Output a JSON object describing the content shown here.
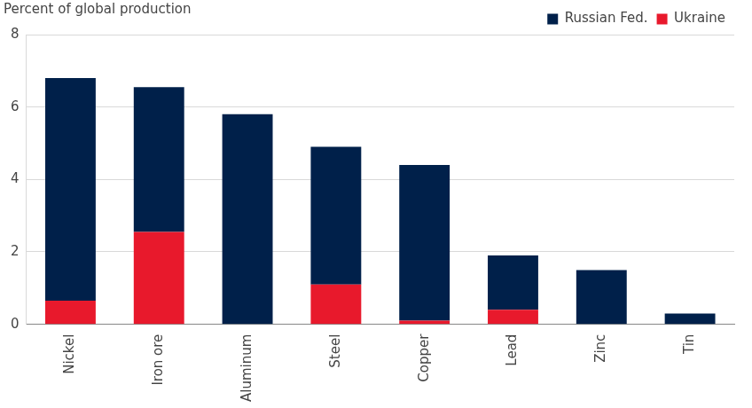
{
  "chart_data": {
    "type": "bar",
    "y_label": "Percent of global production",
    "categories": [
      "Nickel",
      "Iron ore",
      "Aluminum",
      "Steel",
      "Copper",
      "Lead",
      "Zinc",
      "Tin"
    ],
    "series": [
      {
        "name": "Russian Fed.",
        "color": "#00204a",
        "values": [
          6.15,
          4.0,
          5.8,
          3.8,
          4.3,
          1.5,
          1.5,
          0.3
        ]
      },
      {
        "name": "Ukraine",
        "color": "#e8192c",
        "values": [
          0.65,
          2.55,
          0,
          1.1,
          0.1,
          0.4,
          0,
          0
        ]
      }
    ],
    "stacked": true,
    "ylim": [
      0,
      8
    ],
    "yticks": [
      0,
      2,
      4,
      6,
      8
    ],
    "grid": true,
    "legend": "top-right"
  }
}
